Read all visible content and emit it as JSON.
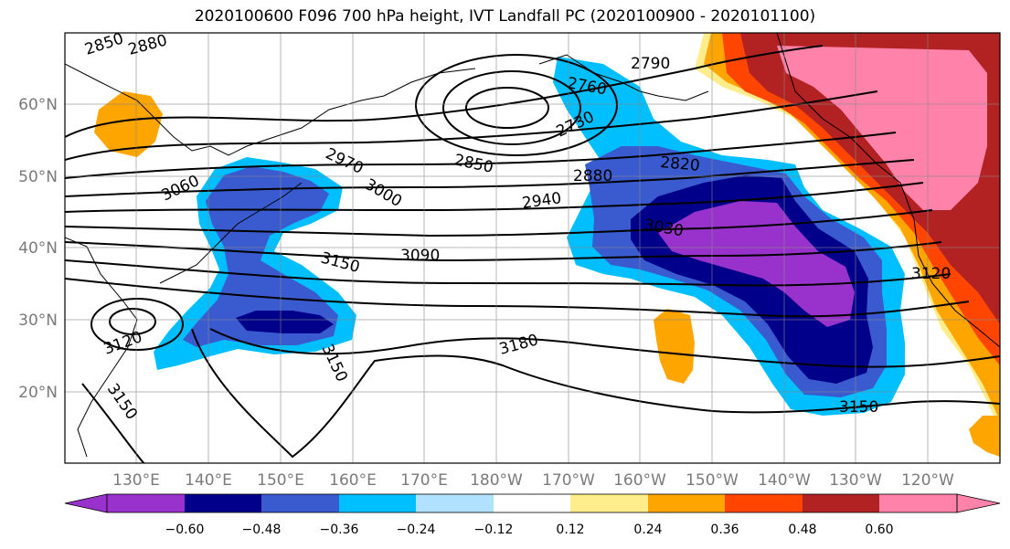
{
  "title": "2020100600 F096 700 hPa height, IVT Landfall PC (2020100900 - 2020101100)",
  "lat_ticks": [
    "60°N",
    "50°N",
    "40°N",
    "30°N",
    "20°N"
  ],
  "lon_ticks": [
    "130°E",
    "140°E",
    "150°E",
    "160°E",
    "170°E",
    "180°W",
    "170°W",
    "160°W",
    "150°W",
    "140°W",
    "130°W",
    "120°W"
  ],
  "contour_labels": [
    "2850",
    "2880",
    "2760",
    "2790",
    "2730",
    "2970",
    "3000",
    "3060",
    "2850",
    "2820",
    "2880",
    "2940",
    "3030",
    "3090",
    "3150",
    "3120",
    "3120",
    "3150",
    "3180",
    "3150",
    "3150"
  ],
  "colorbar": {
    "ticks": [
      "−0.60",
      "−0.48",
      "−0.36",
      "−0.24",
      "−0.12",
      "0.12",
      "0.24",
      "0.36",
      "0.48",
      "0.60"
    ],
    "colors": [
      "#9932cc",
      "#00008b",
      "#3a5bd0",
      "#00bfff",
      "#b0e2ff",
      "#ffffff",
      "#ffec8b",
      "#ffa500",
      "#ff4500",
      "#b22222",
      "#ff82ab"
    ]
  }
}
